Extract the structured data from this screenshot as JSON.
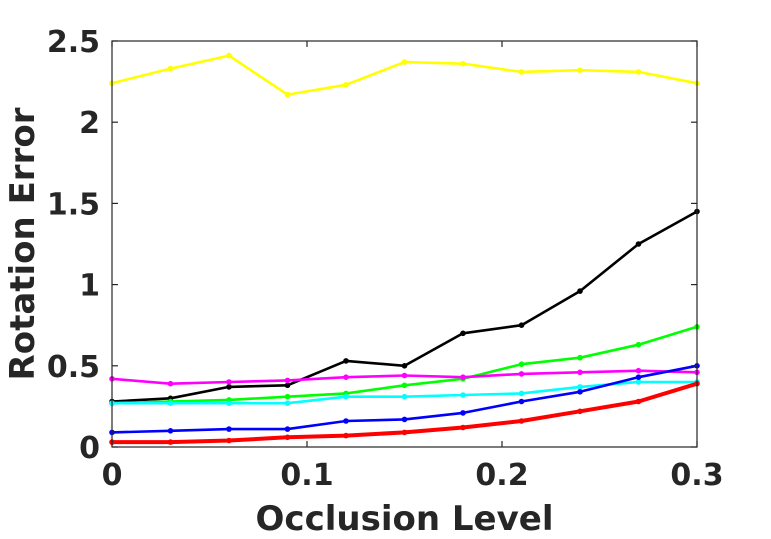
{
  "chart_data": {
    "type": "line",
    "title": "",
    "xlabel": "Occlusion Level",
    "ylabel": "Rotation Error",
    "xlim": [
      0,
      0.3
    ],
    "ylim": [
      0,
      2.5
    ],
    "xticks": [
      "0",
      "0.1",
      "0.2",
      "0.3"
    ],
    "yticks": [
      "0",
      "0.5",
      "1",
      "1.5",
      "2",
      "2.5"
    ],
    "grid": false,
    "legend": "none",
    "x": [
      0,
      0.03,
      0.06,
      0.09,
      0.12,
      0.15,
      0.18,
      0.21,
      0.24,
      0.27,
      0.3
    ],
    "series": [
      {
        "color": "#ffff00",
        "values": [
          2.24,
          2.33,
          2.41,
          2.17,
          2.23,
          2.37,
          2.36,
          2.31,
          2.32,
          2.31,
          2.24
        ]
      },
      {
        "color": "#000000",
        "values": [
          0.28,
          0.3,
          0.37,
          0.38,
          0.53,
          0.5,
          0.7,
          0.75,
          0.96,
          1.25,
          1.45
        ]
      },
      {
        "color": "#00ff00",
        "values": [
          0.27,
          0.28,
          0.29,
          0.31,
          0.33,
          0.38,
          0.42,
          0.51,
          0.55,
          0.63,
          0.74
        ]
      },
      {
        "color": "#ff00ff",
        "values": [
          0.42,
          0.39,
          0.4,
          0.41,
          0.43,
          0.44,
          0.43,
          0.45,
          0.46,
          0.47,
          0.46
        ]
      },
      {
        "color": "#00ffff",
        "values": [
          0.27,
          0.27,
          0.27,
          0.27,
          0.31,
          0.31,
          0.32,
          0.33,
          0.37,
          0.4,
          0.4
        ]
      },
      {
        "color": "#0000ff",
        "values": [
          0.09,
          0.1,
          0.11,
          0.11,
          0.16,
          0.17,
          0.21,
          0.28,
          0.34,
          0.43,
          0.5
        ]
      },
      {
        "color": "#ff0000",
        "values": [
          0.03,
          0.03,
          0.04,
          0.06,
          0.07,
          0.09,
          0.12,
          0.16,
          0.22,
          0.28,
          0.39
        ]
      }
    ]
  }
}
